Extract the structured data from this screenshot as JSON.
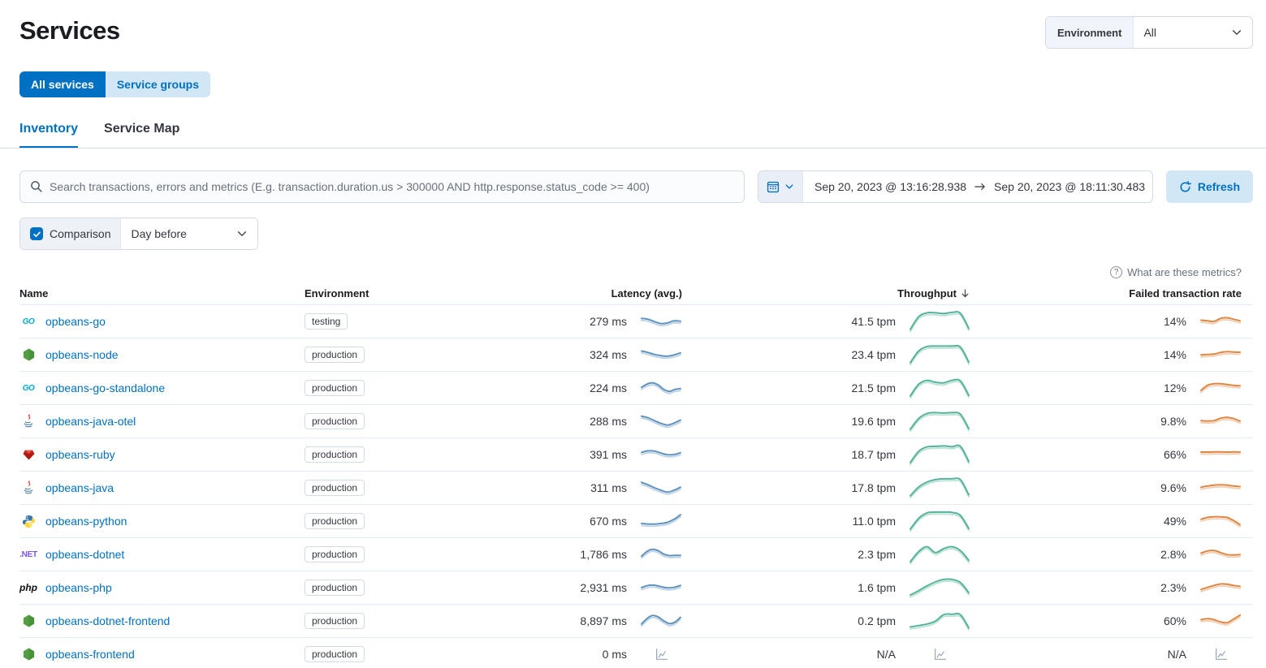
{
  "page": {
    "title": "Services"
  },
  "env_filter": {
    "label": "Environment",
    "value": "All"
  },
  "toggle_buttons": [
    {
      "label": "All services",
      "active": true
    },
    {
      "label": "Service groups",
      "active": false
    }
  ],
  "tabs": [
    {
      "label": "Inventory",
      "active": true
    },
    {
      "label": "Service Map",
      "active": false
    }
  ],
  "search": {
    "placeholder": "Search transactions, errors and metrics (E.g. transaction.duration.us > 300000 AND http.response.status_code >= 400)"
  },
  "datepicker": {
    "start": "Sep 20, 2023 @ 13:16:28.938",
    "end": "Sep 20, 2023 @ 18:11:30.483",
    "refresh_label": "Refresh"
  },
  "comparison": {
    "label": "Comparison",
    "checked": true,
    "value": "Day before"
  },
  "metrics_help": "What are these metrics?",
  "colors": {
    "primary": "#0071c2",
    "latency_line": "#6092C0",
    "throughput_line": "#54B399",
    "failed_line": "#DF8643",
    "placeholder_icon": "#98A2B3"
  },
  "table": {
    "columns": [
      "Name",
      "Environment",
      "Latency (avg.)",
      "Throughput",
      "Failed transaction rate"
    ],
    "sorted_column": "Throughput",
    "sort_direction": "desc",
    "rows": [
      {
        "name": "opbeans-go",
        "agent": "go",
        "environment": "testing",
        "latency": "279 ms",
        "throughput": "41.5 tpm",
        "failed_rate": "14%",
        "latency_spark": [
          0.35,
          0.42,
          0.62,
          0.78,
          0.72,
          0.55,
          0.58
        ],
        "throughput_spark": [
          0.95,
          0.3,
          0.1,
          0.1,
          0.14,
          0.08,
          0.12,
          0.9
        ],
        "failed_spark": [
          0.5,
          0.55,
          0.6,
          0.35,
          0.3,
          0.42,
          0.55
        ]
      },
      {
        "name": "opbeans-node",
        "agent": "node",
        "environment": "production",
        "latency": "324 ms",
        "throughput": "23.4 tpm",
        "failed_rate": "14%",
        "latency_spark": [
          0.3,
          0.42,
          0.58,
          0.68,
          0.72,
          0.62,
          0.45
        ],
        "throughput_spark": [
          0.95,
          0.35,
          0.12,
          0.1,
          0.1,
          0.1,
          0.15,
          0.92
        ],
        "failed_spark": [
          0.62,
          0.58,
          0.55,
          0.42,
          0.35,
          0.38,
          0.4
        ]
      },
      {
        "name": "opbeans-go-standalone",
        "agent": "go",
        "environment": "production",
        "latency": "224 ms",
        "throughput": "21.5 tpm",
        "failed_rate": "12%",
        "latency_spark": [
          0.55,
          0.28,
          0.18,
          0.35,
          0.72,
          0.88,
          0.72,
          0.65
        ],
        "throughput_spark": [
          0.95,
          0.35,
          0.15,
          0.25,
          0.28,
          0.15,
          0.18,
          0.92
        ],
        "failed_spark": [
          0.8,
          0.38,
          0.25,
          0.25,
          0.32,
          0.38,
          0.42
        ]
      },
      {
        "name": "opbeans-java-otel",
        "agent": "java",
        "environment": "production",
        "latency": "288 ms",
        "throughput": "19.6 tpm",
        "failed_rate": "9.8%",
        "latency_spark": [
          0.18,
          0.32,
          0.55,
          0.78,
          0.92,
          0.75,
          0.5
        ],
        "throughput_spark": [
          0.95,
          0.4,
          0.14,
          0.1,
          0.12,
          0.1,
          0.18,
          0.92
        ],
        "failed_spark": [
          0.55,
          0.58,
          0.55,
          0.35,
          0.28,
          0.38,
          0.6
        ]
      },
      {
        "name": "opbeans-ruby",
        "agent": "ruby",
        "environment": "production",
        "latency": "391 ms",
        "throughput": "18.7 tpm",
        "failed_rate": "66%",
        "latency_spark": [
          0.42,
          0.3,
          0.32,
          0.48,
          0.62,
          0.6,
          0.45
        ],
        "throughput_spark": [
          0.95,
          0.38,
          0.15,
          0.12,
          0.1,
          0.14,
          0.12,
          0.9
        ],
        "failed_spark": [
          0.4,
          0.4,
          0.38,
          0.38,
          0.4,
          0.38,
          0.4
        ]
      },
      {
        "name": "opbeans-java",
        "agent": "java",
        "environment": "production",
        "latency": "311 ms",
        "throughput": "17.8 tpm",
        "failed_rate": "9.6%",
        "latency_spark": [
          0.15,
          0.35,
          0.6,
          0.8,
          0.95,
          0.8,
          0.55
        ],
        "throughput_spark": [
          0.95,
          0.5,
          0.25,
          0.12,
          0.08,
          0.08,
          0.12,
          0.9
        ],
        "failed_spark": [
          0.55,
          0.45,
          0.38,
          0.35,
          0.38,
          0.45,
          0.5
        ]
      },
      {
        "name": "opbeans-python",
        "agent": "python",
        "environment": "production",
        "latency": "670 ms",
        "throughput": "11.0 tpm",
        "failed_rate": "49%",
        "latency_spark": [
          0.8,
          0.84,
          0.85,
          0.8,
          0.7,
          0.45,
          0.08
        ],
        "throughput_spark": [
          0.95,
          0.4,
          0.12,
          0.08,
          0.08,
          0.1,
          0.25,
          0.92
        ],
        "failed_spark": [
          0.45,
          0.3,
          0.25,
          0.25,
          0.3,
          0.55,
          0.9
        ]
      },
      {
        "name": "opbeans-dotnet",
        "agent": "dotnet",
        "environment": "production",
        "latency": "1,786 ms",
        "throughput": "2.3 tpm",
        "failed_rate": "2.8%",
        "latency_spark": [
          0.75,
          0.35,
          0.18,
          0.3,
          0.58,
          0.7,
          0.68,
          0.68
        ],
        "throughput_spark": [
          0.92,
          0.4,
          0.15,
          0.45,
          0.25,
          0.15,
          0.35,
          0.85
        ],
        "failed_spark": [
          0.5,
          0.32,
          0.28,
          0.45,
          0.62,
          0.65,
          0.62
        ]
      },
      {
        "name": "opbeans-php",
        "agent": "php",
        "environment": "production",
        "latency": "2,931 ms",
        "throughput": "1.6 tpm",
        "failed_rate": "2.3%",
        "latency_spark": [
          0.6,
          0.42,
          0.4,
          0.52,
          0.62,
          0.58,
          0.42
        ],
        "throughput_spark": [
          0.92,
          0.7,
          0.45,
          0.25,
          0.12,
          0.12,
          0.28,
          0.8
        ],
        "failed_spark": [
          0.75,
          0.58,
          0.42,
          0.3,
          0.32,
          0.42,
          0.5
        ]
      },
      {
        "name": "opbeans-dotnet-frontend",
        "agent": "node",
        "environment": "production",
        "latency": "8,897 ms",
        "throughput": "0.2 tpm",
        "failed_rate": "60%",
        "latency_spark": [
          0.85,
          0.4,
          0.15,
          0.28,
          0.6,
          0.82,
          0.7,
          0.3
        ],
        "throughput_spark": [
          0.85,
          0.78,
          0.7,
          0.55,
          0.22,
          0.2,
          0.22,
          0.9
        ],
        "failed_spark": [
          0.5,
          0.42,
          0.5,
          0.68,
          0.75,
          0.45,
          0.12
        ]
      },
      {
        "name": "opbeans-frontend",
        "agent": "node",
        "environment": "production",
        "latency": "0 ms",
        "throughput": "N/A",
        "failed_rate": "N/A",
        "latency_spark": null,
        "throughput_spark": null,
        "failed_spark": null
      }
    ]
  }
}
